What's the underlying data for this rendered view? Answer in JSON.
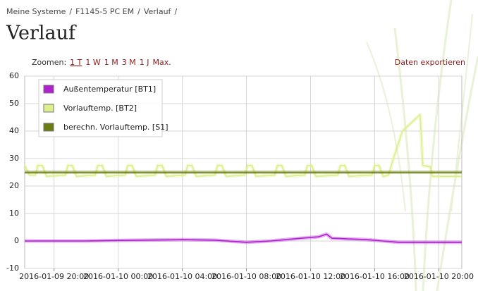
{
  "breadcrumbs": [
    "Meine Systeme",
    "F1145-5 PC EM",
    "Verlauf"
  ],
  "separator": "/",
  "title": "Verlauf",
  "zoom": {
    "label": "Zoomen:",
    "options": [
      "1 T",
      "1 W",
      "1 M",
      "3 M",
      "1 J",
      "Max."
    ],
    "active": 0
  },
  "export": "Daten exportieren",
  "chart_data": {
    "type": "line",
    "xlim": [
      "2016-01-09 18:10",
      "2016-01-10 21:26"
    ],
    "xticks": [
      "2016-01-09 20:00",
      "2016-01-10 00:00",
      "2016-01-10 04:00",
      "2016-01-10 08:00",
      "2016-01-10 12:00",
      "2016-01-10 16:00",
      "2016-01-10 20:00"
    ],
    "ylim": [
      -10,
      60
    ],
    "yticks": [
      -10,
      0,
      10,
      20,
      30,
      40,
      50,
      60
    ],
    "grid": true,
    "legend": "upper left",
    "series": [
      {
        "name": "Außentemperatur [BT1]",
        "color": "#b01fd0",
        "x": [
          "2016-01-09 18:10",
          "2016-01-09 22:00",
          "2016-01-10 00:00",
          "2016-01-10 04:00",
          "2016-01-10 06:00",
          "2016-01-10 08:00",
          "2016-01-10 09:30",
          "2016-01-10 11:00",
          "2016-01-10 12:30",
          "2016-01-10 13:00",
          "2016-01-10 13:20",
          "2016-01-10 15:30",
          "2016-01-10 16:30",
          "2016-01-10 17:30",
          "2016-01-10 21:26"
        ],
        "values": [
          0,
          0,
          0.2,
          0.5,
          0.3,
          -0.5,
          0,
          0.8,
          1.5,
          2.5,
          1,
          0.5,
          0,
          -0.5,
          -0.5
        ]
      },
      {
        "name": "Vorlauftemp. [BT2]",
        "color": "#dcef8c",
        "x": [
          "2016-01-09 18:10",
          "2016-01-09 18:28",
          "2016-01-09 18:50",
          "2016-01-09 19:00",
          "2016-01-09 19:16",
          "2016-01-09 19:32",
          "2016-01-09 20:42",
          "2016-01-09 20:52",
          "2016-01-09 21:08",
          "2016-01-09 21:24",
          "2016-01-09 22:34",
          "2016-01-09 22:44",
          "2016-01-09 23:00",
          "2016-01-09 23:16",
          "2016-01-10 00:26",
          "2016-01-10 00:36",
          "2016-01-10 00:52",
          "2016-01-10 01:08",
          "2016-01-10 02:18",
          "2016-01-10 02:28",
          "2016-01-10 02:44",
          "2016-01-10 03:00",
          "2016-01-10 04:10",
          "2016-01-10 04:20",
          "2016-01-10 04:36",
          "2016-01-10 04:52",
          "2016-01-10 06:02",
          "2016-01-10 06:12",
          "2016-01-10 06:28",
          "2016-01-10 06:44",
          "2016-01-10 07:54",
          "2016-01-10 08:04",
          "2016-01-10 08:20",
          "2016-01-10 08:36",
          "2016-01-10 09:46",
          "2016-01-10 09:56",
          "2016-01-10 10:12",
          "2016-01-10 10:28",
          "2016-01-10 11:38",
          "2016-01-10 11:48",
          "2016-01-10 12:04",
          "2016-01-10 12:20",
          "2016-01-10 13:42",
          "2016-01-10 13:52",
          "2016-01-10 14:08",
          "2016-01-10 14:24",
          "2016-01-10 15:50",
          "2016-01-10 16:00",
          "2016-01-10 16:16",
          "2016-01-10 16:32",
          "2016-01-10 16:52",
          "2016-01-10 17:10",
          "2016-01-10 17:44",
          "2016-01-10 18:50",
          "2016-01-10 19:00",
          "2016-01-10 19:28",
          "2016-01-10 19:36",
          "2016-01-10 21:26"
        ],
        "values": [
          27.5,
          24,
          24,
          27.5,
          27.5,
          23.5,
          24,
          27.5,
          27.5,
          23.5,
          24,
          27.5,
          27.5,
          23.5,
          24,
          27.5,
          27.5,
          23.5,
          24,
          27.5,
          27.5,
          23.5,
          24,
          27.5,
          27.5,
          23.5,
          24,
          27.5,
          27.5,
          23.5,
          24,
          27.5,
          27.5,
          23.5,
          24,
          27.5,
          27.5,
          23.5,
          24,
          27.5,
          27.5,
          23.5,
          24,
          27.5,
          27.5,
          23.5,
          24,
          27.5,
          27.5,
          23.5,
          24,
          30,
          40,
          46,
          27.5,
          27,
          23.5,
          23.5
        ]
      },
      {
        "name": "berechn. Vorlauftemp. [S1]",
        "color": "#6b7d12",
        "x": [
          "2016-01-09 18:10",
          "2016-01-10 21:26"
        ],
        "values": [
          25,
          25
        ]
      }
    ]
  }
}
